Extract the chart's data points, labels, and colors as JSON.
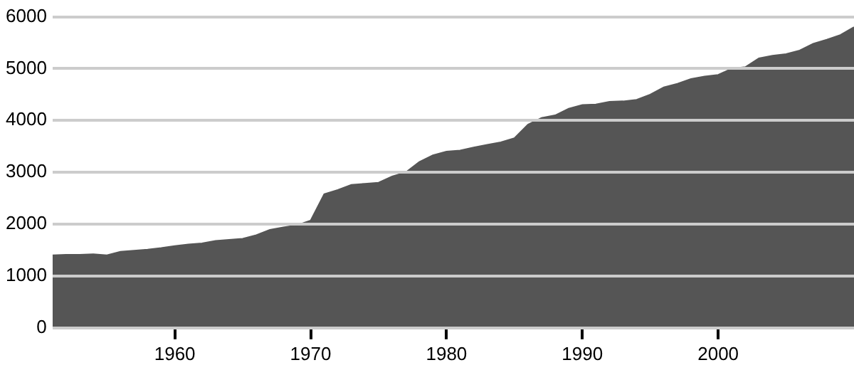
{
  "chart_data": {
    "type": "area",
    "x": [
      1951,
      1952,
      1953,
      1954,
      1955,
      1956,
      1957,
      1958,
      1959,
      1960,
      1961,
      1962,
      1963,
      1964,
      1965,
      1966,
      1967,
      1968,
      1969,
      1970,
      1971,
      1972,
      1973,
      1974,
      1975,
      1976,
      1977,
      1978,
      1979,
      1980,
      1981,
      1982,
      1983,
      1984,
      1985,
      1986,
      1987,
      1988,
      1989,
      1990,
      1991,
      1992,
      1993,
      1994,
      1995,
      1996,
      1997,
      1998,
      1999,
      2000,
      2001,
      2002,
      2003,
      2004,
      2005,
      2006,
      2007,
      2008,
      2009,
      2010
    ],
    "series": [
      {
        "color": "#555555",
        "values": [
          1400,
          1410,
          1410,
          1420,
          1400,
          1470,
          1490,
          1510,
          1540,
          1580,
          1610,
          1630,
          1680,
          1700,
          1720,
          1790,
          1890,
          1940,
          1980,
          2070,
          2580,
          2660,
          2760,
          2780,
          2800,
          2920,
          3000,
          3200,
          3330,
          3400,
          3420,
          3480,
          3530,
          3580,
          3660,
          3920,
          4050,
          4100,
          4230,
          4300,
          4310,
          4360,
          4370,
          4400,
          4500,
          4640,
          4710,
          4800,
          4850,
          4880,
          5000,
          5030,
          5200,
          5250,
          5280,
          5350,
          5480,
          5560,
          5650,
          5800
        ]
      }
    ],
    "xlim": [
      1951,
      2010
    ],
    "ylim": [
      0,
      6000
    ],
    "xticks": [
      1960,
      1970,
      1980,
      1990,
      2000
    ],
    "yticks": [
      0,
      1000,
      2000,
      3000,
      4000,
      5000,
      6000
    ],
    "grid": "y"
  }
}
